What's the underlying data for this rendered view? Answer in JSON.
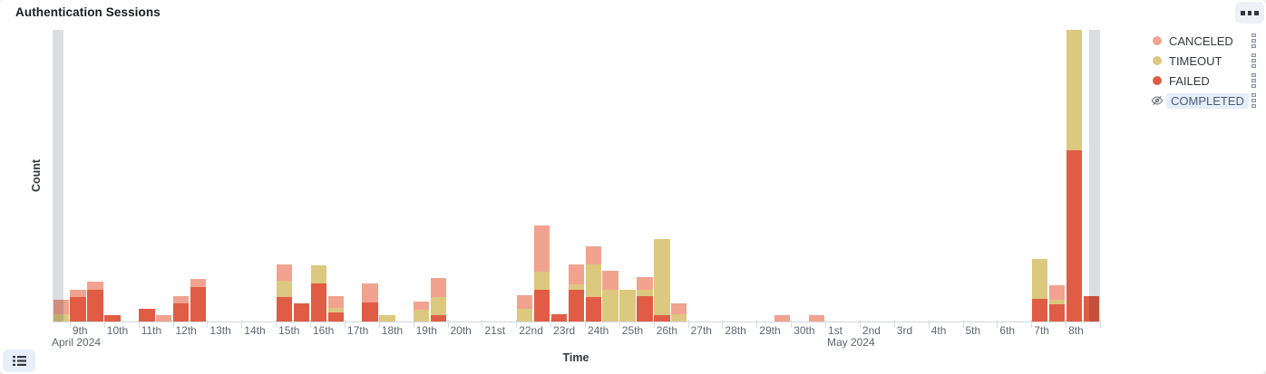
{
  "panel": {
    "title": "Authentication Sessions",
    "icons": {
      "options": "boxes-horizontal-icon",
      "legend_toggle": "list-icon",
      "legend_item_actions": "boxes-vertical-icon",
      "hidden_series": "eye-slash-icon"
    }
  },
  "colors": {
    "canceled": "#F1A38F",
    "timeout": "#DCC87E",
    "failed": "#E15C44",
    "partial_bucket": "#DCDDE2",
    "hidden_pill_bg": "#E5EDF8",
    "hidden_pill_text": "#4A5B7C",
    "axis_text": "#5F6672",
    "title_text": "#1A1C21",
    "baseline": "#D3D6DD"
  },
  "legend": {
    "items": [
      {
        "label": "CANCELED",
        "color": "#F1A38F",
        "hidden": false
      },
      {
        "label": "TIMEOUT",
        "color": "#DCC87E",
        "hidden": false
      },
      {
        "label": "FAILED",
        "color": "#E15C44",
        "hidden": false
      },
      {
        "label": "COMPLETED",
        "color": null,
        "hidden": true
      }
    ]
  },
  "chart_data": {
    "type": "bar",
    "stacked": true,
    "title": "Authentication Sessions",
    "xlabel": "Time",
    "ylabel": "Count",
    "y_tick_labels_visible": false,
    "ylim": [
      0,
      322
    ],
    "value_unit": "relative (y axis shows no numeric ticks; values estimated proportionally)",
    "bucket_hours": 12,
    "x_start": "2024-04-08 12:00",
    "x_end": "2024-05-08 24:00",
    "x_tick_labels": [
      "9th",
      "10th",
      "11th",
      "12th",
      "13th",
      "14th",
      "15th",
      "16th",
      "17th",
      "18th",
      "19th",
      "20th",
      "21st",
      "22nd",
      "23rd",
      "24th",
      "25th",
      "26th",
      "27th",
      "28th",
      "29th",
      "30th",
      "1st",
      "2nd",
      "3rd",
      "4th",
      "5th",
      "6th",
      "7th",
      "8th"
    ],
    "month_labels": [
      {
        "text": "April 2024",
        "tick_index": 0
      },
      {
        "text": "May 2024",
        "tick_index": 22
      }
    ],
    "series_order": [
      "FAILED",
      "TIMEOUT",
      "CANCELED"
    ],
    "hidden_series": [
      "COMPLETED"
    ],
    "partial_data_markers": [
      "start",
      "end"
    ],
    "bars": [
      {
        "i": 0,
        "bucket": "Apr 8 12:00",
        "FAILED": 0,
        "TIMEOUT": 8,
        "CANCELED": 16
      },
      {
        "i": 1,
        "bucket": "Apr 9 00:00",
        "FAILED": 27,
        "TIMEOUT": 0,
        "CANCELED": 8
      },
      {
        "i": 2,
        "bucket": "Apr 9 12:00",
        "FAILED": 35,
        "TIMEOUT": 0,
        "CANCELED": 9
      },
      {
        "i": 3,
        "bucket": "Apr 10 00:00",
        "FAILED": 7,
        "TIMEOUT": 0,
        "CANCELED": 0
      },
      {
        "i": 5,
        "bucket": "Apr 11 00:00",
        "FAILED": 14,
        "TIMEOUT": 0,
        "CANCELED": 0
      },
      {
        "i": 6,
        "bucket": "Apr 11 12:00",
        "FAILED": 0,
        "TIMEOUT": 0,
        "CANCELED": 7
      },
      {
        "i": 7,
        "bucket": "Apr 12 00:00",
        "FAILED": 20,
        "TIMEOUT": 0,
        "CANCELED": 8
      },
      {
        "i": 8,
        "bucket": "Apr 12 12:00",
        "FAILED": 38,
        "TIMEOUT": 0,
        "CANCELED": 9
      },
      {
        "i": 13,
        "bucket": "Apr 15 00:00",
        "FAILED": 27,
        "TIMEOUT": 18,
        "CANCELED": 18
      },
      {
        "i": 14,
        "bucket": "Apr 15 12:00",
        "FAILED": 20,
        "TIMEOUT": 0,
        "CANCELED": 0
      },
      {
        "i": 15,
        "bucket": "Apr 16 00:00",
        "FAILED": 42,
        "TIMEOUT": 20,
        "CANCELED": 0
      },
      {
        "i": 16,
        "bucket": "Apr 16 12:00",
        "FAILED": 10,
        "TIMEOUT": 5,
        "CANCELED": 13
      },
      {
        "i": 18,
        "bucket": "Apr 17 12:00",
        "FAILED": 21,
        "TIMEOUT": 0,
        "CANCELED": 21
      },
      {
        "i": 19,
        "bucket": "Apr 18 00:00",
        "FAILED": 0,
        "TIMEOUT": 7,
        "CANCELED": 0
      },
      {
        "i": 21,
        "bucket": "Apr 19 00:00",
        "FAILED": 0,
        "TIMEOUT": 13,
        "CANCELED": 9
      },
      {
        "i": 22,
        "bucket": "Apr 19 12:00",
        "FAILED": 7,
        "TIMEOUT": 20,
        "CANCELED": 21
      },
      {
        "i": 27,
        "bucket": "Apr 22 00:00",
        "FAILED": 0,
        "TIMEOUT": 14,
        "CANCELED": 15
      },
      {
        "i": 28,
        "bucket": "Apr 22 12:00",
        "FAILED": 35,
        "TIMEOUT": 20,
        "CANCELED": 51
      },
      {
        "i": 29,
        "bucket": "Apr 23 00:00",
        "FAILED": 8,
        "TIMEOUT": 0,
        "CANCELED": 0
      },
      {
        "i": 30,
        "bucket": "Apr 23 12:00",
        "FAILED": 35,
        "TIMEOUT": 6,
        "CANCELED": 22
      },
      {
        "i": 31,
        "bucket": "Apr 24 00:00",
        "FAILED": 27,
        "TIMEOUT": 36,
        "CANCELED": 20
      },
      {
        "i": 32,
        "bucket": "Apr 24 12:00",
        "FAILED": 0,
        "TIMEOUT": 35,
        "CANCELED": 21
      },
      {
        "i": 33,
        "bucket": "Apr 25 00:00",
        "FAILED": 0,
        "TIMEOUT": 35,
        "CANCELED": 0
      },
      {
        "i": 34,
        "bucket": "Apr 25 12:00",
        "FAILED": 28,
        "TIMEOUT": 7,
        "CANCELED": 14
      },
      {
        "i": 35,
        "bucket": "Apr 26 00:00",
        "FAILED": 7,
        "TIMEOUT": 84,
        "CANCELED": 0
      },
      {
        "i": 36,
        "bucket": "Apr 26 12:00",
        "FAILED": 0,
        "TIMEOUT": 8,
        "CANCELED": 12
      },
      {
        "i": 42,
        "bucket": "Apr 29 12:00",
        "FAILED": 0,
        "TIMEOUT": 0,
        "CANCELED": 7
      },
      {
        "i": 44,
        "bucket": "Apr 30 12:00",
        "FAILED": 0,
        "TIMEOUT": 0,
        "CANCELED": 7
      },
      {
        "i": 57,
        "bucket": "May 7 00:00",
        "FAILED": 25,
        "TIMEOUT": 44,
        "CANCELED": 0
      },
      {
        "i": 58,
        "bucket": "May 7 12:00",
        "FAILED": 19,
        "TIMEOUT": 5,
        "CANCELED": 16
      },
      {
        "i": 59,
        "bucket": "May 8 00:00",
        "FAILED": 189,
        "TIMEOUT": 133,
        "CANCELED": 0
      },
      {
        "i": 60,
        "bucket": "May 8 12:00",
        "FAILED": 28,
        "TIMEOUT": 0,
        "CANCELED": 0
      }
    ]
  }
}
